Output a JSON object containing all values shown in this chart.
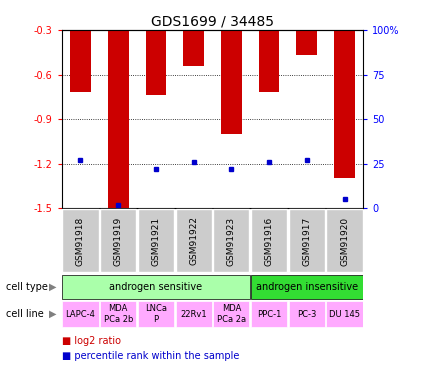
{
  "title": "GDS1699 / 34485",
  "samples": [
    "GSM91918",
    "GSM91919",
    "GSM91921",
    "GSM91922",
    "GSM91923",
    "GSM91916",
    "GSM91917",
    "GSM91920"
  ],
  "log2_values": [
    -0.72,
    -1.52,
    -0.74,
    -0.54,
    -1.0,
    -0.72,
    -0.47,
    -1.3
  ],
  "percentile_values": [
    27,
    2,
    22,
    26,
    22,
    26,
    27,
    5
  ],
  "ylim": [
    -1.5,
    -0.3
  ],
  "yticks": [
    -1.5,
    -1.2,
    -0.9,
    -0.6,
    -0.3
  ],
  "right_yticks": [
    0,
    25,
    50,
    75,
    100
  ],
  "bar_color": "#cc0000",
  "percentile_color": "#0000cc",
  "cell_type_groups": [
    {
      "label": "androgen sensitive",
      "span": [
        0,
        5
      ],
      "color": "#aaffaa"
    },
    {
      "label": "androgen insensitive",
      "span": [
        5,
        8
      ],
      "color": "#33dd33"
    }
  ],
  "cell_lines": [
    {
      "label": "LAPC-4",
      "col": 0,
      "color": "#ffaaff"
    },
    {
      "label": "MDA\nPCa 2b",
      "col": 1,
      "color": "#ffaaff"
    },
    {
      "label": "LNCa\nP",
      "col": 2,
      "color": "#ffaaff"
    },
    {
      "label": "22Rv1",
      "col": 3,
      "color": "#ffaaff"
    },
    {
      "label": "MDA\nPCa 2a",
      "col": 4,
      "color": "#ffaaff"
    },
    {
      "label": "PPC-1",
      "col": 5,
      "color": "#ffaaff"
    },
    {
      "label": "PC-3",
      "col": 6,
      "color": "#ffaaff"
    },
    {
      "label": "DU 145",
      "col": 7,
      "color": "#ffaaff"
    }
  ],
  "legend_items": [
    {
      "label": "log2 ratio",
      "color": "#cc0000"
    },
    {
      "label": "percentile rank within the sample",
      "color": "#0000cc"
    }
  ],
  "sample_bg_color": "#cccccc",
  "label_fontsize": 7,
  "tick_fontsize": 7,
  "title_fontsize": 10
}
